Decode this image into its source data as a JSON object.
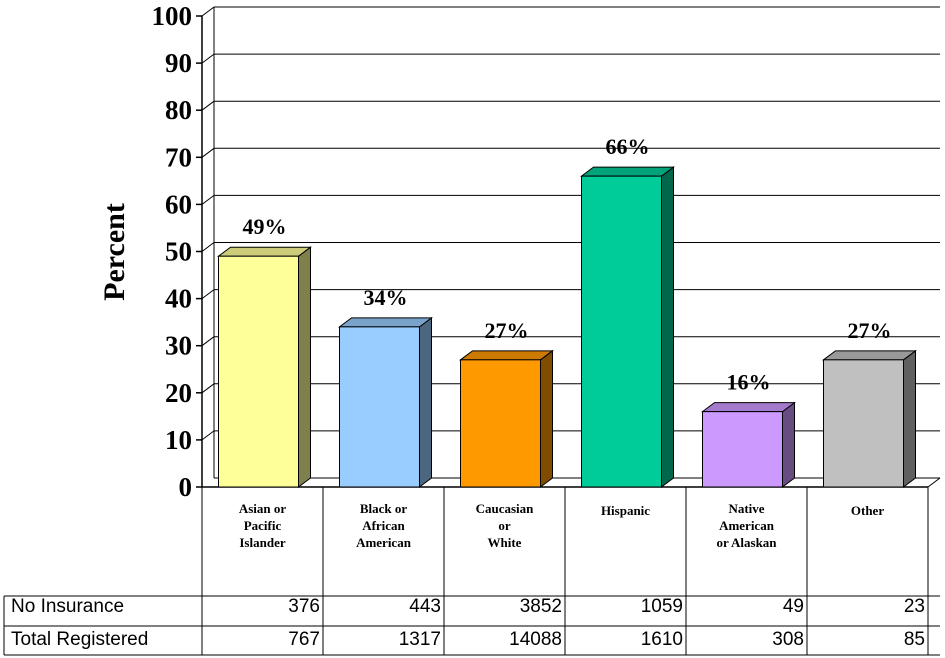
{
  "chart_data": {
    "type": "bar",
    "title": "",
    "xlabel": "",
    "ylabel": "Percent",
    "ylim": [
      0,
      100
    ],
    "yticks": [
      "0",
      "10",
      "20",
      "30",
      "40",
      "50",
      "60",
      "70",
      "80",
      "90",
      "100"
    ],
    "grid": true,
    "legend": "none",
    "style": "3d",
    "categories": [
      [
        "Asian or",
        "Pacific",
        "Islander"
      ],
      [
        "Black or",
        "African",
        "American"
      ],
      [
        "Caucasian",
        "or",
        "White"
      ],
      [
        "Hispanic"
      ],
      [
        "Native",
        "American",
        "or Alaskan"
      ],
      [
        "Other"
      ]
    ],
    "values": [
      49,
      34,
      27,
      66,
      16,
      27
    ],
    "data_labels": [
      "49%",
      "34%",
      "27%",
      "66%",
      "16%",
      "27%"
    ],
    "colors": [
      {
        "front": "#ffff99",
        "side": "#80804c",
        "top": "#cccc7a"
      },
      {
        "front": "#99ccff",
        "side": "#4c6680",
        "top": "#7aa3cc"
      },
      {
        "front": "#ff9900",
        "side": "#804c00",
        "top": "#cc7a00"
      },
      {
        "front": "#00cc99",
        "side": "#00664c",
        "top": "#00a37a"
      },
      {
        "front": "#cc99ff",
        "side": "#664c80",
        "top": "#a37acc"
      },
      {
        "front": "#c0c0c0",
        "side": "#606060",
        "top": "#999999"
      }
    ],
    "table": {
      "rows": [
        {
          "label": "No Insurance",
          "values": [
            "376",
            "443",
            "3852",
            "1059",
            "49",
            "23"
          ]
        },
        {
          "label": "Total Registered",
          "values": [
            "767",
            "1317",
            "14088",
            "1610",
            "308",
            "85"
          ]
        }
      ]
    }
  }
}
